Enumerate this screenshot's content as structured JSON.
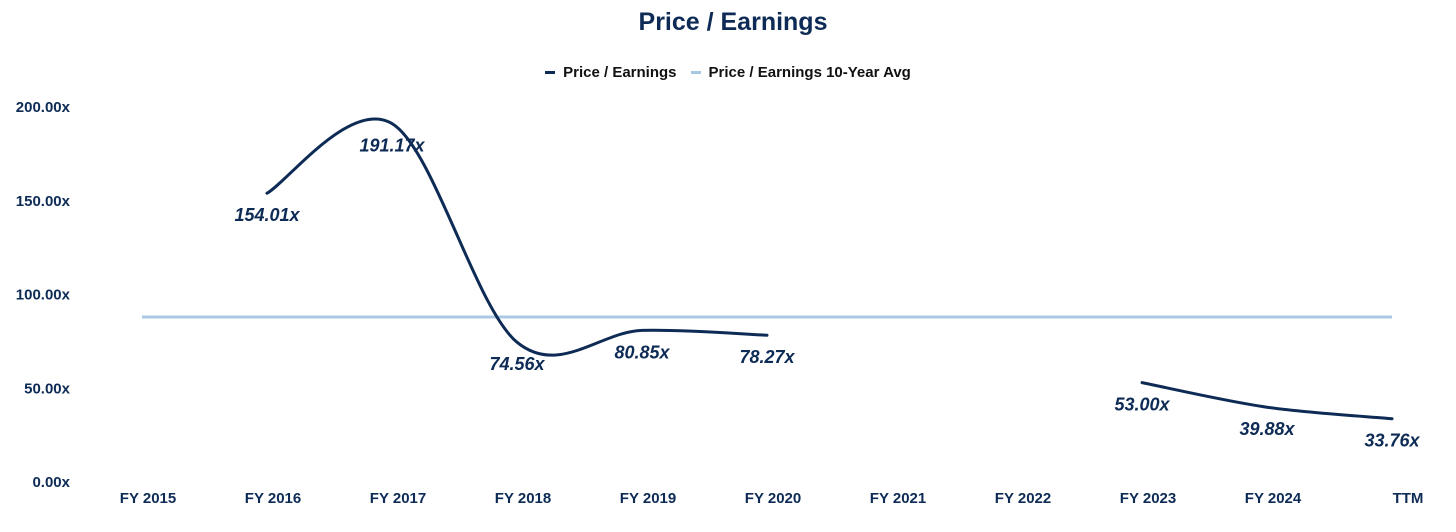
{
  "chart_data": {
    "type": "line",
    "title": "Price / Earnings",
    "categories": [
      "FY 2015",
      "FY 2016",
      "FY 2017",
      "FY 2018",
      "FY 2019",
      "FY 2020",
      "FY 2021",
      "FY 2022",
      "FY 2023",
      "FY 2024",
      "TTM"
    ],
    "series": [
      {
        "name": "Price / Earnings",
        "color": "#0d2b55",
        "values": [
          null,
          154.01,
          191.17,
          74.56,
          80.85,
          78.27,
          null,
          null,
          53.0,
          39.88,
          33.76
        ],
        "labels": [
          "",
          "154.01x",
          "191.17x",
          "74.56x",
          "80.85x",
          "78.27x",
          "",
          "",
          "53.00x",
          "39.88x",
          "33.76x"
        ]
      },
      {
        "name": "Price / Earnings 10-Year Avg",
        "color": "#a9c8e4",
        "values": [
          88,
          88,
          88,
          88,
          88,
          88,
          88,
          88,
          88,
          88,
          88
        ]
      }
    ],
    "y_ticks": [
      "0.00x",
      "50.00x",
      "100.00x",
      "150.00x",
      "200.00x"
    ],
    "ylim": [
      0,
      200
    ],
    "legend_position": "top-center",
    "grid": false
  }
}
